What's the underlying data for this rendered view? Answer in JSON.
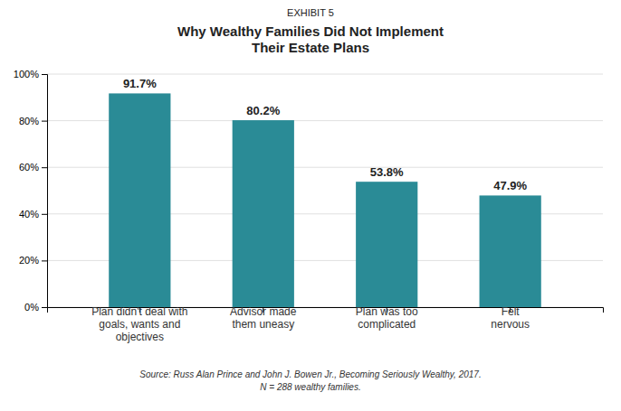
{
  "chart_data": {
    "type": "bar",
    "subtitle": "EXHIBIT 5",
    "title": "Why Wealthy Families Did Not Implement\nTheir Estate Plans",
    "categories": [
      "Plan didn't deal with\ngoals, wants and\nobjectives",
      "Advisor made\nthem uneasy",
      "Plan was too\ncomplicated",
      "Felt\nnervous"
    ],
    "values": [
      91.7,
      80.2,
      53.8,
      47.9
    ],
    "value_labels": [
      "91.7%",
      "80.2%",
      "53.8%",
      "47.9%"
    ],
    "data_labels": true,
    "color": "#2a8b96",
    "ylim": [
      0,
      100
    ],
    "yticks": [
      {
        "value": 0,
        "label": "0%"
      },
      {
        "value": 20,
        "label": "20%"
      },
      {
        "value": 40,
        "label": "40%"
      },
      {
        "value": 60,
        "label": "60%"
      },
      {
        "value": 80,
        "label": "80%"
      },
      {
        "value": 100,
        "label": "100%"
      }
    ],
    "grid": true,
    "annotations": [
      "Source: Russ Alan Prince and John J. Bowen Jr., Becoming Seriously Wealthy, 2017.\nN = 288 wealthy families."
    ]
  }
}
